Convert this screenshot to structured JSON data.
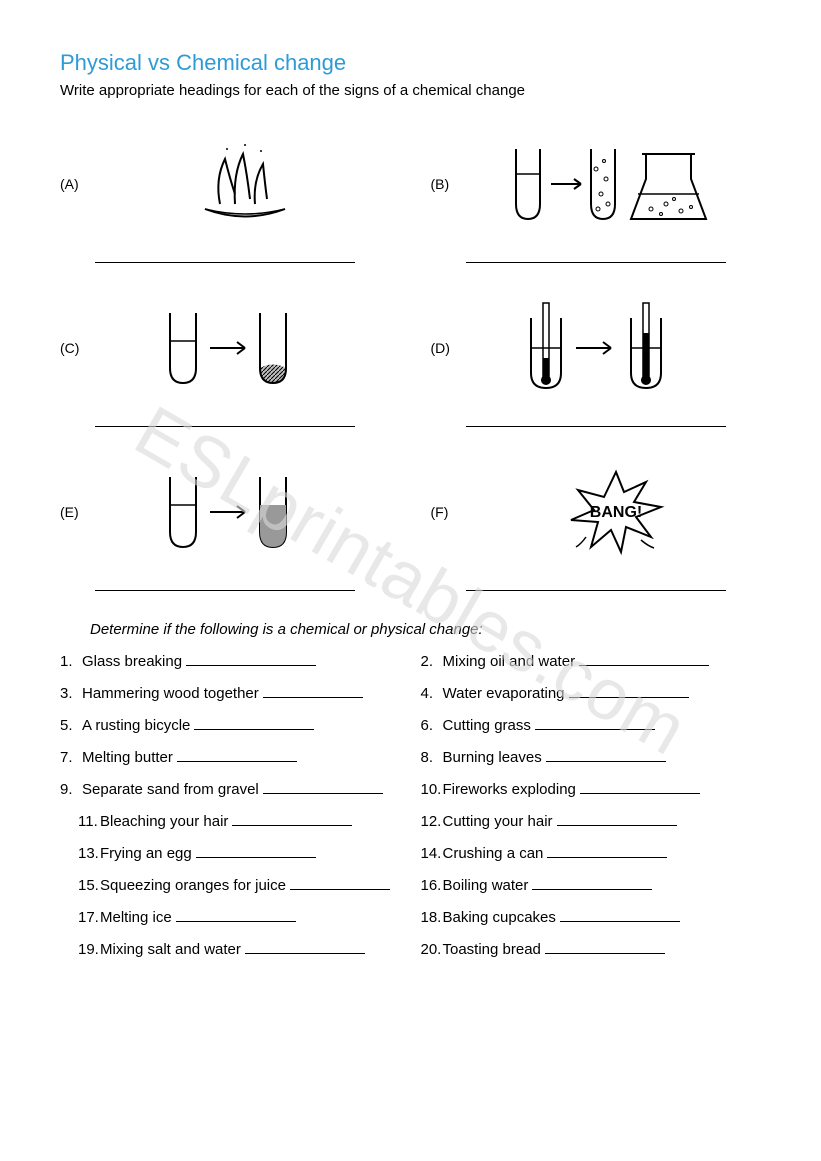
{
  "title": "Physical vs Chemical change",
  "title_color": "#2e9bd6",
  "subtitle": "Write appropriate headings for each of the signs of a chemical change",
  "watermark": "ESLprintables.com",
  "diagrams": [
    {
      "label": "(A)",
      "icon": "flame-dish"
    },
    {
      "label": "(B)",
      "icon": "bubbles-flask"
    },
    {
      "label": "(C)",
      "icon": "precipitate"
    },
    {
      "label": "(D)",
      "icon": "thermometers"
    },
    {
      "label": "(E)",
      "icon": "color-change"
    },
    {
      "label": "(F)",
      "icon": "bang"
    }
  ],
  "instruction": "Determine if the following is a chemical or physical change:",
  "questions": [
    {
      "n": "1.",
      "text": "Glass breaking",
      "line": 130
    },
    {
      "n": "2.",
      "text": "Mixing oil and water",
      "line": 130
    },
    {
      "n": "3.",
      "text": "Hammering wood together",
      "line": 100
    },
    {
      "n": "4.",
      "text": "Water evaporating",
      "line": 120
    },
    {
      "n": "5.",
      "text": "A rusting bicycle",
      "line": 120
    },
    {
      "n": "6.",
      "text": "Cutting grass",
      "line": 120
    },
    {
      "n": "7.",
      "text": "Melting butter",
      "line": 120
    },
    {
      "n": "8.",
      "text": "Burning leaves",
      "line": 120
    },
    {
      "n": "9.",
      "text": "Separate sand from gravel",
      "line": 120
    },
    {
      "n": "10.",
      "text": "Fireworks exploding",
      "line": 120
    },
    {
      "n": "11.",
      "text": "Bleaching your hair",
      "line": 120,
      "indent": true
    },
    {
      "n": "12.",
      "text": "Cutting your hair",
      "line": 120
    },
    {
      "n": "13.",
      "text": "Frying an egg",
      "line": 120,
      "indent": true
    },
    {
      "n": "14.",
      "text": "Crushing a can",
      "line": 120
    },
    {
      "n": "15.",
      "text": "Squeezing oranges for juice",
      "line": 100,
      "indent": true
    },
    {
      "n": "16.",
      "text": "Boiling water",
      "line": 120
    },
    {
      "n": "17.",
      "text": "Melting ice",
      "line": 120,
      "indent": true
    },
    {
      "n": "18.",
      "text": "Baking cupcakes",
      "line": 120
    },
    {
      "n": "19.",
      "text": "Mixing salt and water",
      "line": 120,
      "indent": true
    },
    {
      "n": "20.",
      "text": "Toasting bread",
      "line": 120
    }
  ],
  "colors": {
    "text": "#000000",
    "background": "#ffffff",
    "watermark": "#d9d9d9"
  }
}
